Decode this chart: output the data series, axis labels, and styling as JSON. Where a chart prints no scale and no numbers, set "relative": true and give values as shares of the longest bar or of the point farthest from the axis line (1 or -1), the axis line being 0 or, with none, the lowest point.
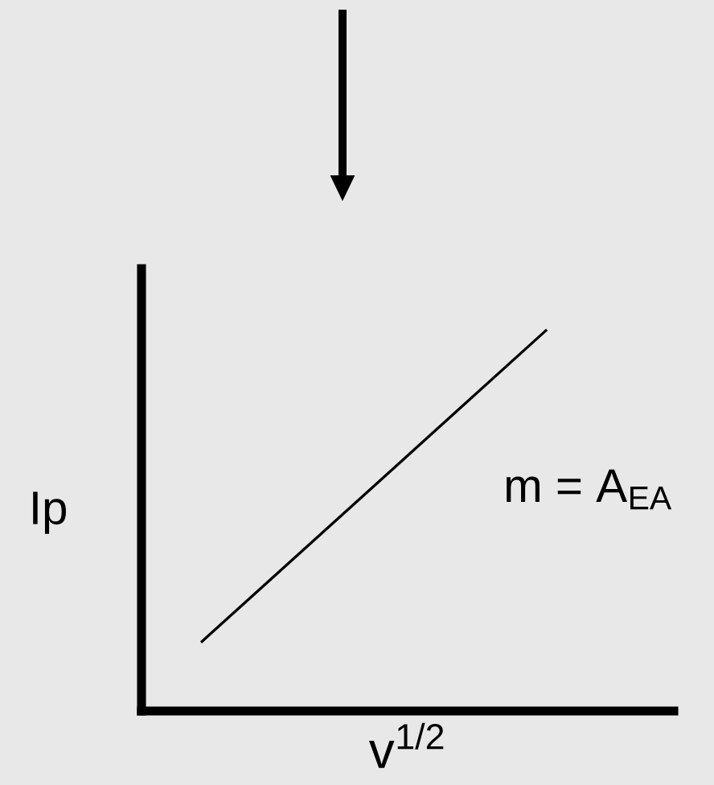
{
  "chart_data": {
    "type": "line",
    "relative": true,
    "xlabel": "v$^{1/2}$",
    "ylabel": "Ip",
    "categories": [
      null,
      null
    ],
    "values": [
      0.18,
      1
    ],
    "color": "#000000",
    "annotations": [
      "m = A$_{EA}$"
    ],
    "grid": false
  }
}
